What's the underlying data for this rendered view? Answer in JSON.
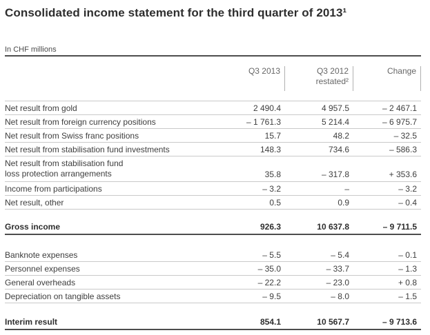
{
  "page": {
    "title": "Consolidated income statement for the third quarter of 2013¹",
    "units_label": "In CHF millions"
  },
  "table": {
    "header": {
      "col1": "Q3 2013",
      "col2_line1": "Q3 2012",
      "col2_line2": "restated²",
      "col3": "Change"
    },
    "income_rows": [
      {
        "label": "Net result from gold",
        "q3_2013": "2 490.4",
        "q3_2012_restated": "4 957.5",
        "change": "– 2 467.1"
      },
      {
        "label": "Net result from foreign currency positions",
        "q3_2013": "– 1 761.3",
        "q3_2012_restated": "5 214.4",
        "change": "– 6 975.7"
      },
      {
        "label": "Net result from Swiss franc positions",
        "q3_2013": "15.7",
        "q3_2012_restated": "48.2",
        "change": "– 32.5"
      },
      {
        "label": "Net result from stabilisation fund investments",
        "q3_2013": "148.3",
        "q3_2012_restated": "734.6",
        "change": "– 586.3"
      },
      {
        "label_line1": "Net result from stabilisation fund",
        "label_line2": "loss protection arrangements",
        "q3_2013": "35.8",
        "q3_2012_restated": "– 317.8",
        "change": "+ 353.6"
      },
      {
        "label": "Income from participations",
        "q3_2013": "– 3.2",
        "q3_2012_restated": "–",
        "change": "– 3.2"
      },
      {
        "label": "Net result, other",
        "q3_2013": "0.5",
        "q3_2012_restated": "0.9",
        "change": "– 0.4"
      }
    ],
    "gross_income": {
      "label": "Gross income",
      "q3_2013": "926.3",
      "q3_2012_restated": "10 637.8",
      "change": "– 9 711.5"
    },
    "expense_rows": [
      {
        "label": "Banknote expenses",
        "q3_2013": "– 5.5",
        "q3_2012_restated": "– 5.4",
        "change": "– 0.1"
      },
      {
        "label": "Personnel expenses",
        "q3_2013": "– 35.0",
        "q3_2012_restated": "– 33.7",
        "change": "– 1.3"
      },
      {
        "label": "General overheads",
        "q3_2013": "– 22.2",
        "q3_2012_restated": "– 23.0",
        "change": "+ 0.8"
      },
      {
        "label": "Depreciation on tangible assets",
        "q3_2013": "– 9.5",
        "q3_2012_restated": "– 8.0",
        "change": "– 1.5"
      }
    ],
    "interim_result": {
      "label": "Interim result",
      "q3_2013": "854.1",
      "q3_2012_restated": "10 567.7",
      "change": "– 9 713.6"
    },
    "colors": {
      "strong_rule": "#4d4d4d",
      "light_rule": "#c9c9c9",
      "header_text": "#666666",
      "body_text": "#3d3d3d"
    }
  }
}
